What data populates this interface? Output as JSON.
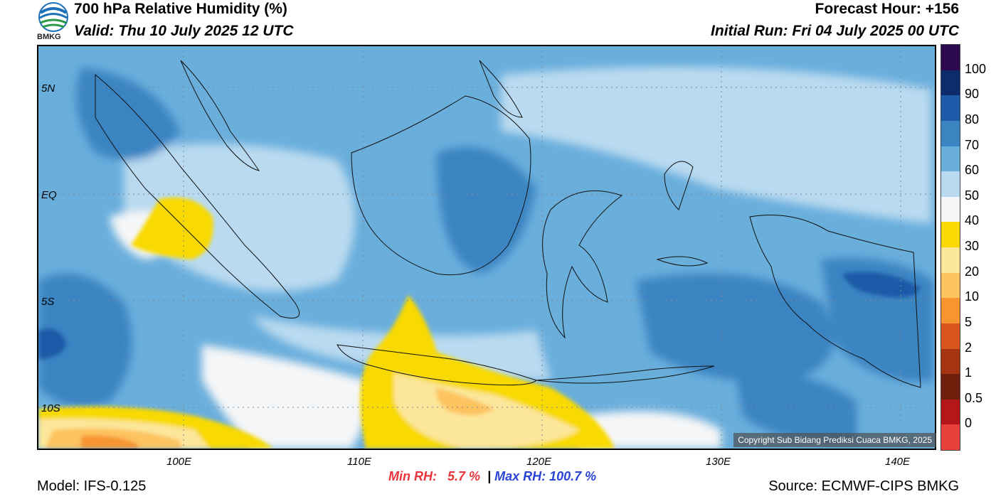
{
  "header": {
    "title": "700 hPa Relative Humidity (%)",
    "valid": "Valid: Thu 10 July 2025 12 UTC",
    "forecast_hour": "Forecast Hour: +156",
    "initial_run": "Initial Run: Fri 04 July 2025 00 UTC",
    "logo_text": "BMKG"
  },
  "map": {
    "lat_labels": [
      "5N",
      "EQ",
      "5S",
      "10S"
    ],
    "lon_labels": [
      "100E",
      "110E",
      "120E",
      "130E",
      "140E"
    ],
    "copyright": "Copyright Sub Bidang Prediksi Cuaca BMKG, 2025"
  },
  "colorbar": {
    "labels": [
      "100",
      "90",
      "80",
      "70",
      "60",
      "50",
      "40",
      "30",
      "20",
      "10",
      "5",
      "2",
      "1",
      "0.5",
      "0"
    ],
    "colors": [
      "#2b0a4f",
      "#0c2c6b",
      "#1f5aa8",
      "#3b84c2",
      "#6aaedc",
      "#b9daf0",
      "#f5f6f7",
      "#f8d900",
      "#fce69a",
      "#fdc35e",
      "#f79530",
      "#d9561c",
      "#a63413",
      "#6e1f0c",
      "#b3171a",
      "#e8413b"
    ]
  },
  "stats": {
    "min_label": "Min RH:",
    "min_value": "5.7 %",
    "separator": "|",
    "max_label": "Max RH: 100.7 %"
  },
  "footer": {
    "model": "Model: IFS-0.125",
    "source": "Source: ECMWF-CIPS BMKG"
  }
}
